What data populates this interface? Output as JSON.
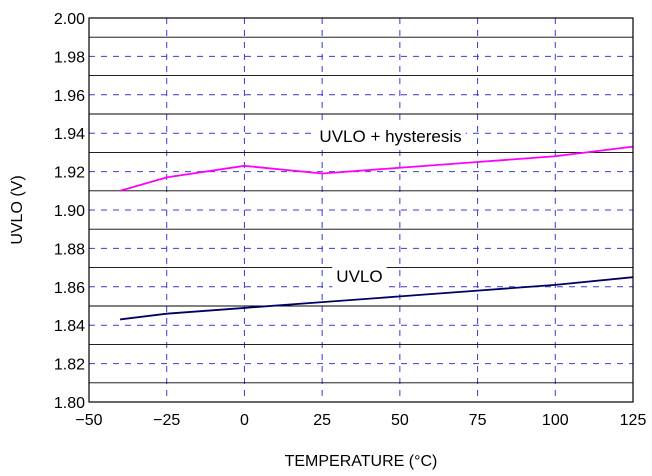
{
  "chart_data": {
    "type": "line",
    "title": "",
    "xlabel": "TEMPERATURE (°C)",
    "ylabel": "UVLO (V)",
    "xlim": [
      -50,
      125
    ],
    "ylim": [
      1.8,
      2.0
    ],
    "x_ticks": [
      -50,
      -25,
      0,
      25,
      50,
      75,
      100,
      125
    ],
    "x_tick_labels": [
      "−50",
      "−25",
      "0",
      "25",
      "50",
      "75",
      "100",
      "125"
    ],
    "y_ticks": [
      1.8,
      1.82,
      1.84,
      1.86,
      1.88,
      1.9,
      1.92,
      1.94,
      1.96,
      1.98,
      2.0
    ],
    "y_tick_labels": [
      "1.80",
      "1.82",
      "1.84",
      "1.86",
      "1.88",
      "1.90",
      "1.92",
      "1.94",
      "1.96",
      "1.98",
      "2.00"
    ],
    "grid": true,
    "legend": "none",
    "series": [
      {
        "name": "UVLO + hysteresis",
        "color": "#ff00ff",
        "x": [
          -40,
          -25,
          0,
          25,
          50,
          75,
          100,
          125
        ],
        "y": [
          1.91,
          1.917,
          1.923,
          1.919,
          1.922,
          1.925,
          1.928,
          1.933
        ]
      },
      {
        "name": "UVLO",
        "color": "#000066",
        "x": [
          -40,
          -25,
          0,
          25,
          50,
          75,
          100,
          125
        ],
        "y": [
          1.843,
          1.846,
          1.849,
          1.852,
          1.855,
          1.858,
          1.861,
          1.865
        ]
      }
    ],
    "annotations": [
      {
        "text": "UVLO + hysteresis",
        "x": 47,
        "y": 1.9385
      },
      {
        "text": "UVLO",
        "x": 37,
        "y": 1.8655
      }
    ]
  }
}
